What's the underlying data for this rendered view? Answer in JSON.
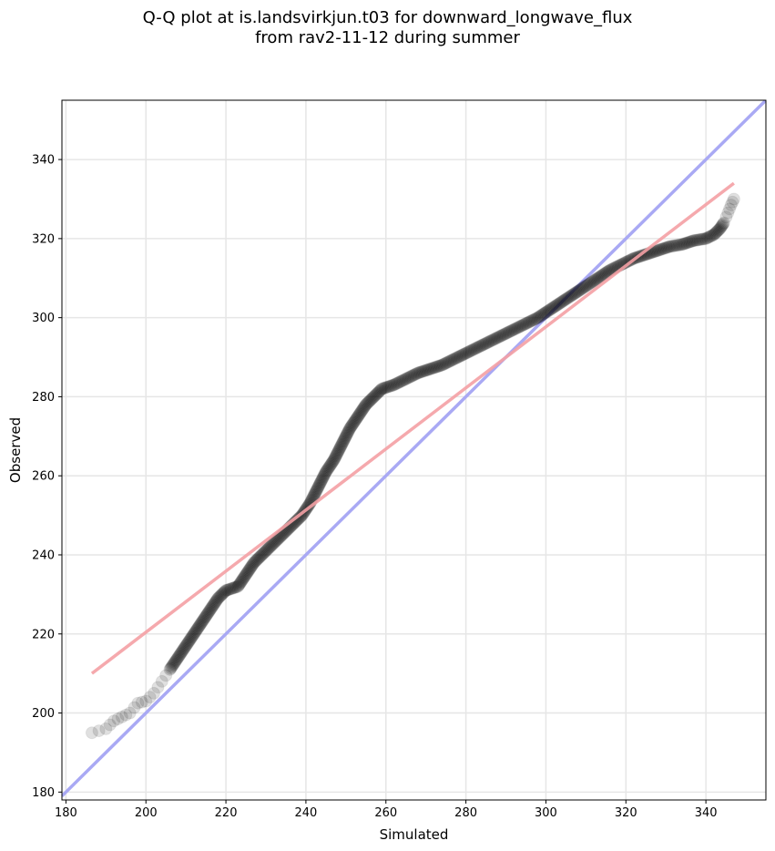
{
  "chart_data": {
    "type": "scatter",
    "title_line1": "Q-Q plot at is.landsvirkjun.t03 for downward_longwave_flux",
    "title_line2": "from rav2-11-12 during summer",
    "xlabel": "Simulated",
    "ylabel": "Observed",
    "xlim": [
      179,
      355
    ],
    "ylim": [
      178,
      355
    ],
    "xticks": [
      180,
      200,
      220,
      240,
      260,
      280,
      300,
      320,
      340
    ],
    "yticks": [
      180,
      200,
      220,
      240,
      260,
      280,
      300,
      320,
      340
    ],
    "grid": true,
    "quantile_curve": [
      [
        186.5,
        195
      ],
      [
        190,
        196
      ],
      [
        192,
        198
      ],
      [
        194,
        199
      ],
      [
        196,
        200
      ],
      [
        198,
        202.5
      ],
      [
        200,
        203
      ],
      [
        202,
        205
      ],
      [
        204,
        208
      ],
      [
        206,
        211
      ],
      [
        208,
        214
      ],
      [
        210,
        217
      ],
      [
        212,
        220
      ],
      [
        214,
        223
      ],
      [
        216,
        226
      ],
      [
        218,
        229
      ],
      [
        220,
        231
      ],
      [
        223,
        232
      ],
      [
        225,
        235
      ],
      [
        227,
        238
      ],
      [
        230,
        241
      ],
      [
        233,
        244
      ],
      [
        236,
        247
      ],
      [
        239,
        250
      ],
      [
        241,
        253
      ],
      [
        243,
        257
      ],
      [
        245,
        261
      ],
      [
        247,
        264
      ],
      [
        249,
        268
      ],
      [
        251,
        272
      ],
      [
        253,
        275
      ],
      [
        255,
        278
      ],
      [
        257,
        280
      ],
      [
        259,
        282
      ],
      [
        262,
        283
      ],
      [
        265,
        284.5
      ],
      [
        268,
        286
      ],
      [
        271,
        287
      ],
      [
        274,
        288
      ],
      [
        277,
        289.5
      ],
      [
        280,
        291
      ],
      [
        283,
        292.5
      ],
      [
        286,
        294
      ],
      [
        289,
        295.5
      ],
      [
        292,
        297
      ],
      [
        295,
        298.5
      ],
      [
        298,
        300
      ],
      [
        301,
        302
      ],
      [
        304,
        304
      ],
      [
        307,
        306
      ],
      [
        310,
        308
      ],
      [
        313,
        310
      ],
      [
        316,
        312
      ],
      [
        319,
        313.5
      ],
      [
        322,
        315
      ],
      [
        325,
        316
      ],
      [
        328,
        317
      ],
      [
        331,
        318
      ],
      [
        334,
        318.5
      ],
      [
        337,
        319.5
      ],
      [
        340,
        320
      ],
      [
        342,
        321
      ],
      [
        343.5,
        322.5
      ],
      [
        344.5,
        324
      ],
      [
        345.5,
        326.5
      ],
      [
        346.3,
        328.5
      ],
      [
        347,
        330
      ]
    ],
    "fit_line": {
      "color": "#f4a0a4",
      "points": [
        [
          186.5,
          210
        ],
        [
          347,
          334
        ]
      ]
    },
    "identity_line": {
      "color": "#a9a9f4",
      "points": [
        [
          179,
          179
        ],
        [
          355,
          355
        ]
      ]
    },
    "marker_color": "#000000"
  }
}
